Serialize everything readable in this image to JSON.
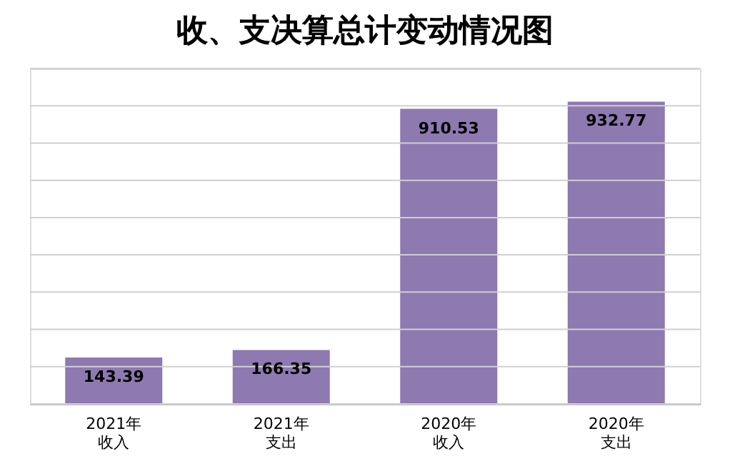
{
  "chart_data": {
    "type": "bar",
    "title": "收、支决算总计变动情况图",
    "categories": [
      "2021年收入",
      "2021年支出",
      "2020年收入",
      "2020年支出"
    ],
    "values": [
      143.39,
      166.35,
      910.53,
      932.77
    ],
    "color": "#8e79b0",
    "ylim": [
      0,
      1035
    ],
    "yticks": [
      {
        "value": 0,
        "label": null
      },
      {
        "value": 115,
        "label": null
      },
      {
        "value": 230,
        "label": null
      },
      {
        "value": 345,
        "label": null
      },
      {
        "value": 460,
        "label": null
      },
      {
        "value": 575,
        "label": null
      },
      {
        "value": 690,
        "label": null
      },
      {
        "value": 805,
        "label": null
      },
      {
        "value": 920,
        "label": null
      },
      {
        "value": 1035,
        "label": null
      }
    ],
    "grid": "y",
    "data_labels": true,
    "tick_labels": "x"
  }
}
